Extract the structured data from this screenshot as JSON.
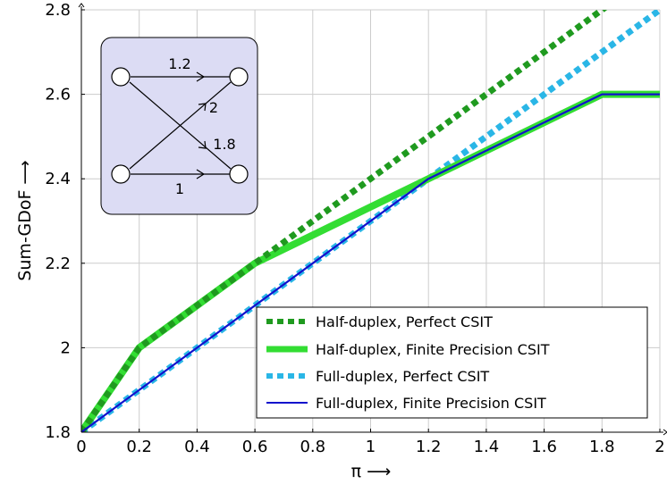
{
  "chart_data": {
    "type": "line",
    "title": "",
    "xlabel": "π ⟶",
    "ylabel": "Sum-GDoF ⟶",
    "xlim": [
      0,
      2
    ],
    "ylim": [
      1.8,
      2.8
    ],
    "x_ticks": [
      "0",
      "0.2",
      "0.4",
      "0.6",
      "0.8",
      "1",
      "1.2",
      "1.4",
      "1.6",
      "1.8",
      "2"
    ],
    "y_ticks": [
      "1.8",
      "2",
      "2.2",
      "2.4",
      "2.6",
      "2.8"
    ],
    "grid": true,
    "legend_position": "bottom-right",
    "series": [
      {
        "name": "Half-duplex, Perfect CSIT",
        "color": "#1f9a1f",
        "style": "dashed-thick",
        "x": [
          0,
          0.2,
          2
        ],
        "y": [
          1.8,
          2.0,
          2.9
        ]
      },
      {
        "name": "Half-duplex, Finite Precision CSIT",
        "color": "#33dd33",
        "style": "solid-thick",
        "x": [
          0,
          0.2,
          0.6,
          1.2,
          1.8,
          2.0
        ],
        "y": [
          1.8,
          2.0,
          2.2,
          2.4,
          2.6,
          2.6
        ]
      },
      {
        "name": "Full-duplex, Perfect CSIT",
        "color": "#2ab6e6",
        "style": "dashed-thick",
        "x": [
          0,
          1.2,
          2.0
        ],
        "y": [
          1.8,
          2.4,
          2.8
        ]
      },
      {
        "name": "Full-duplex, Finite Precision CSIT",
        "color": "#1111cc",
        "style": "solid-thin",
        "x": [
          0,
          1.2,
          1.8,
          2.0
        ],
        "y": [
          1.8,
          2.4,
          2.6,
          2.6
        ]
      }
    ],
    "inset": {
      "edge_labels": [
        "1.2",
        "2",
        "1.8",
        "1"
      ],
      "background": "#dcdcf4"
    }
  }
}
